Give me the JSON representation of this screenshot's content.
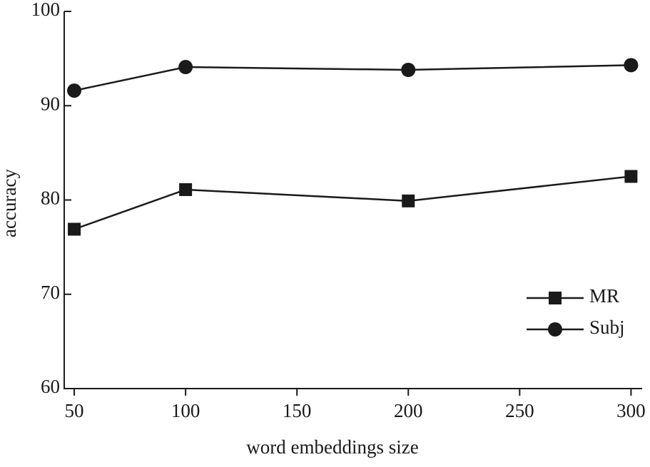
{
  "chart_data": {
    "type": "line",
    "xlabel": "word embeddings size",
    "ylabel": "accuracy",
    "x": [
      50,
      100,
      200,
      300
    ],
    "series": [
      {
        "name": "MR",
        "color": "#1a1a1a",
        "marker": "square",
        "values": [
          76.9,
          81.1,
          79.9,
          82.5
        ]
      },
      {
        "name": "Subj",
        "color": "#1a1a1a",
        "marker": "circle",
        "values": [
          91.6,
          94.1,
          93.8,
          94.3
        ]
      }
    ],
    "xlim": [
      45.5,
      305
    ],
    "xticks": [
      50,
      100,
      150,
      200,
      250,
      300
    ],
    "ylim": [
      60,
      100
    ],
    "yticks": [
      60,
      70,
      80,
      90,
      100
    ],
    "grid": false,
    "legend": "lower right"
  }
}
